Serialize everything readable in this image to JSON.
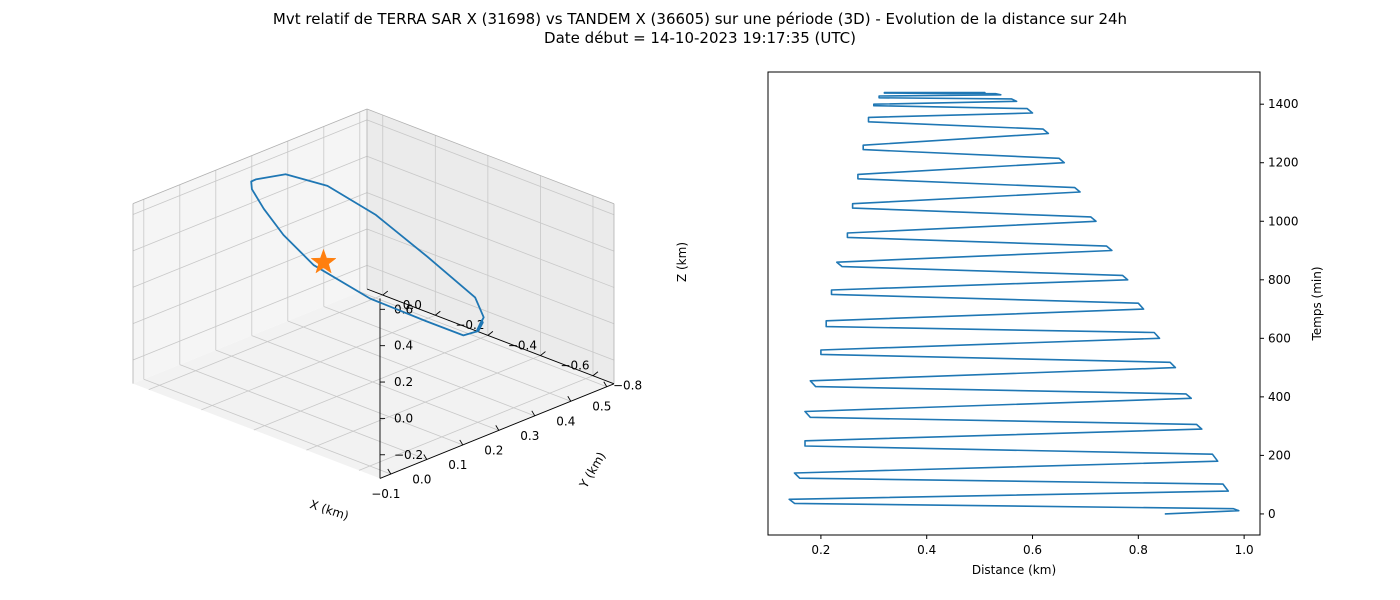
{
  "figure": {
    "title_line1": "Mvt relatif de TERRA SAR X (31698) vs TANDEM X (36605) sur une période (3D) - Evolution de la distance sur 24h",
    "title_line2": "Date début = 14-10-2023 19:17:35 (UTC)"
  },
  "colors": {
    "series": "#1f77b4",
    "marker": "#ff7f0e",
    "pane": "#f2f2f2",
    "grid": "#c8c8c8"
  },
  "chart_data": [
    {
      "type": "line",
      "projection": "3d",
      "xlabel": "X (km)",
      "ylabel": "Y (km)",
      "zlabel": "Z (km)",
      "xticks": [
        "−0.1",
        "0.0",
        "0.1",
        "0.2",
        "0.3",
        "0.4",
        "0.5"
      ],
      "yticks": [
        "−0.8",
        "−0.6",
        "−0.4",
        "−0.2",
        "0.0"
      ],
      "zticks": [
        "−0.2",
        "0.0",
        "0.2",
        "0.4",
        "0.6"
      ],
      "xlim": [
        -0.13,
        0.52
      ],
      "ylim": [
        -0.88,
        0.06
      ],
      "zlim": [
        -0.33,
        0.66
      ],
      "grid": true,
      "series": [
        {
          "x": [
            0.4,
            0.43,
            0.36,
            0.26,
            0.16,
            0.07,
            0.01,
            0.0,
            0.04,
            0.08,
            0.12,
            0.14,
            0.16,
            0.25,
            0.33,
            0.39,
            0.44,
            0.47,
            0.45,
            0.4
          ],
          "y": [
            -0.52,
            -0.5,
            -0.6,
            -0.72,
            -0.8,
            -0.78,
            -0.65,
            -0.45,
            -0.28,
            -0.15,
            -0.05,
            -0.02,
            -0.01,
            0.0,
            -0.05,
            -0.15,
            -0.28,
            -0.42,
            -0.48,
            -0.52
          ],
          "z": [
            -0.15,
            -0.12,
            -0.02,
            0.08,
            0.18,
            0.32,
            0.42,
            0.5,
            0.54,
            0.58,
            0.6,
            0.61,
            0.6,
            0.55,
            0.45,
            0.3,
            0.1,
            -0.07,
            -0.13,
            -0.15
          ]
        }
      ],
      "marker": {
        "x": 0.1,
        "y": -0.35,
        "z": 0.38,
        "symbol": "star"
      }
    },
    {
      "type": "line",
      "xlabel": "Distance (km)",
      "ylabel": "Temps (min)",
      "xticks": [
        0.2,
        0.4,
        0.6,
        0.8,
        1.0
      ],
      "yticks": [
        0,
        200,
        400,
        600,
        800,
        1000,
        1200,
        1400
      ],
      "xlim": [
        0.1,
        1.03
      ],
      "ylim": [
        -72,
        1510
      ],
      "grid": false,
      "y_axis_side": "right",
      "series": [
        {
          "x": [
            0.85,
            0.99,
            0.98,
            0.15,
            0.14,
            0.97,
            0.96,
            0.16,
            0.15,
            0.95,
            0.94,
            0.17,
            0.17,
            0.92,
            0.91,
            0.18,
            0.17,
            0.9,
            0.89,
            0.19,
            0.18,
            0.87,
            0.86,
            0.2,
            0.2,
            0.84,
            0.83,
            0.21,
            0.21,
            0.81,
            0.8,
            0.22,
            0.22,
            0.78,
            0.77,
            0.24,
            0.23,
            0.75,
            0.74,
            0.25,
            0.25,
            0.72,
            0.71,
            0.26,
            0.26,
            0.69,
            0.68,
            0.27,
            0.27,
            0.66,
            0.65,
            0.28,
            0.28,
            0.63,
            0.62,
            0.29,
            0.29,
            0.6,
            0.59,
            0.3,
            0.3,
            0.57,
            0.56,
            0.31,
            0.31,
            0.54,
            0.53,
            0.32,
            0.32,
            0.51,
            0.5
          ],
          "y": [
            0,
            11,
            18,
            36,
            50,
            78,
            102,
            122,
            140,
            180,
            204,
            232,
            250,
            290,
            306,
            330,
            350,
            395,
            410,
            435,
            455,
            500,
            518,
            545,
            560,
            600,
            620,
            640,
            660,
            700,
            720,
            750,
            765,
            800,
            815,
            845,
            860,
            900,
            915,
            945,
            960,
            1000,
            1015,
            1045,
            1060,
            1100,
            1115,
            1145,
            1160,
            1200,
            1215,
            1245,
            1260,
            1300,
            1315,
            1340,
            1355,
            1370,
            1385,
            1395,
            1400,
            1410,
            1418,
            1422,
            1428,
            1432,
            1436,
            1438,
            1440,
            1440,
            1440
          ]
        }
      ]
    }
  ]
}
